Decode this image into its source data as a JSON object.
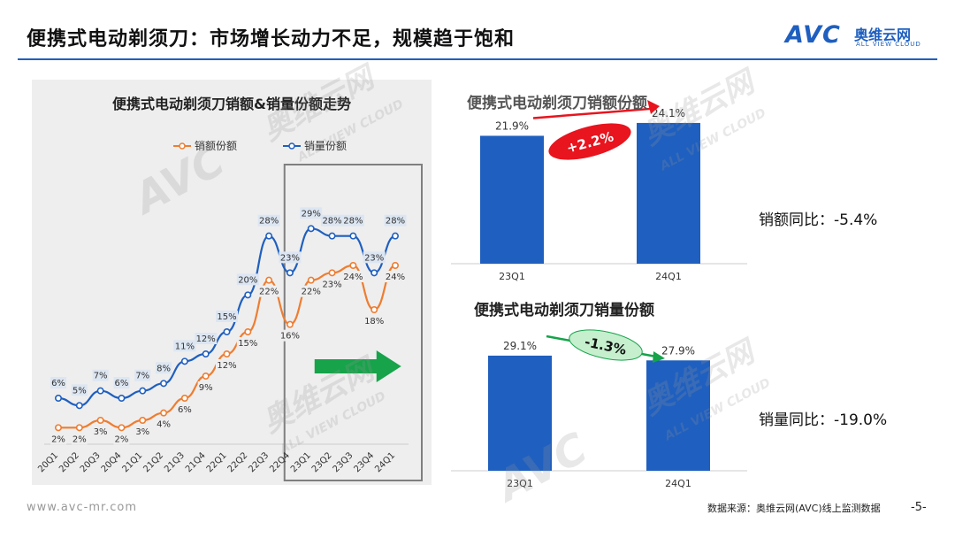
{
  "page": {
    "title": "便携式电动剃须刀：市场增长动力不足，规模趋于饱和",
    "logo": {
      "mark": "AVC",
      "cn": "奥维云网",
      "en": "ALL VIEW CLOUD"
    },
    "url": "www.avc-mr.com",
    "source": "数据来源：奥维云网(AVC)线上监测数据",
    "page_number": "-5-",
    "watermark_cn": "奥维云网",
    "watermark_en": "ALL VIEW CLOUD",
    "watermark_mark": "AVC"
  },
  "colors": {
    "sales_value": "#ee7d31",
    "sales_volume": "#1f5fbf",
    "bar": "#1f5fbf",
    "up_arrow": "#e8141e",
    "down_arrow": "#16a34a",
    "accent_line": "#1f5fbf"
  },
  "chart_data": [
    {
      "type": "line",
      "title": "便携式电动剃须刀销额&销量份额走势",
      "x": [
        "20Q1",
        "20Q2",
        "20Q3",
        "20Q4",
        "21Q1",
        "21Q2",
        "21Q3",
        "21Q4",
        "22Q1",
        "22Q2",
        "22Q3",
        "22Q4",
        "23Q1",
        "23Q2",
        "23Q3",
        "23Q4",
        "24Q1"
      ],
      "series": [
        {
          "name": "销额份额",
          "values": [
            2,
            2,
            3,
            2,
            3,
            4,
            6,
            9,
            12,
            15,
            22,
            16,
            22,
            23,
            24,
            18,
            24
          ],
          "labels": [
            "2%",
            "2%",
            "3%",
            "2%",
            "3%",
            "4%",
            "6%",
            "9%",
            "12%",
            "15%",
            "22%",
            "16%",
            "22%",
            "23%",
            "24%",
            "18%",
            "24%"
          ]
        },
        {
          "name": "销量份额",
          "values": [
            6,
            5,
            7,
            6,
            7,
            8,
            11,
            12,
            15,
            20,
            28,
            23,
            29,
            28,
            28,
            23,
            28
          ],
          "labels": [
            "6%",
            "5%",
            "7%",
            "6%",
            "7%",
            "8%",
            "11%",
            "12%",
            "15%",
            "20%",
            "28%",
            "23%",
            "29%",
            "28%",
            "28%",
            "23%",
            "28%"
          ]
        }
      ],
      "legend": "top-center",
      "ylim": [
        0,
        33
      ],
      "highlight_range": [
        "23Q1",
        "24Q1"
      ]
    },
    {
      "type": "bar",
      "title": "便携式电动剃须刀销额份额",
      "categories": [
        "23Q1",
        "24Q1"
      ],
      "values": [
        21.9,
        24.1
      ],
      "labels": [
        "21.9%",
        "24.1%"
      ],
      "change_label": "+2.2%",
      "ylim": [
        0,
        30
      ]
    },
    {
      "type": "bar",
      "title": "便携式电动剃须刀销量份额",
      "categories": [
        "23Q1",
        "24Q1"
      ],
      "values": [
        29.1,
        27.9
      ],
      "labels": [
        "29.1%",
        "27.9%"
      ],
      "change_label": "-1.3%",
      "ylim": [
        0,
        34
      ]
    }
  ],
  "yoy": {
    "sales_value": "销额同比：-5.4%",
    "sales_volume": "销量同比：-19.0%"
  }
}
